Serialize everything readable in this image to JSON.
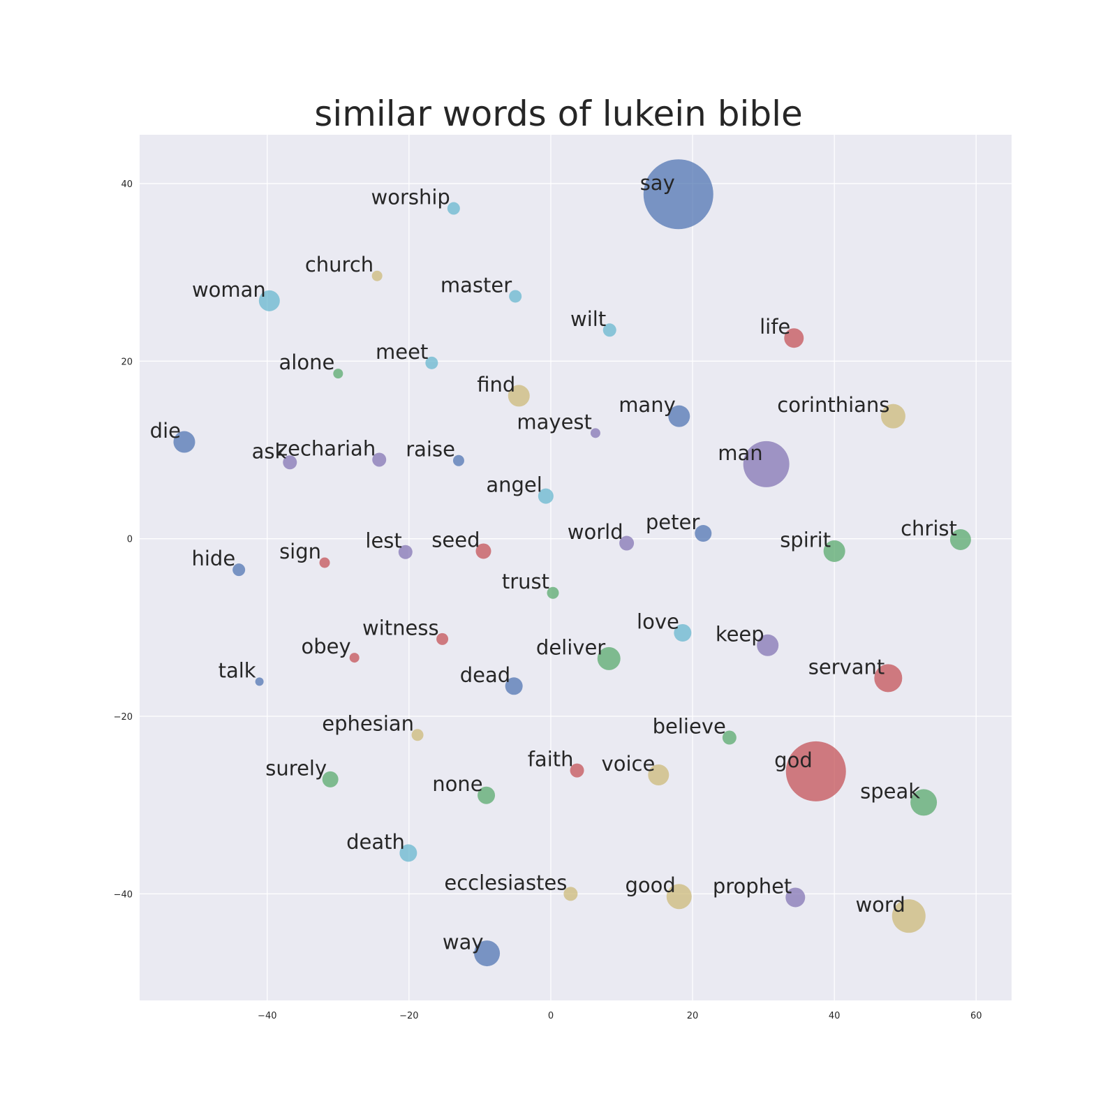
{
  "chart_data": {
    "type": "scatter",
    "title": "similar words of lukein bible",
    "xlabel": "",
    "ylabel": "",
    "xlim": [
      -58,
      65
    ],
    "ylim": [
      -52,
      45.5
    ],
    "xticks": [
      -40,
      -20,
      0,
      20,
      40,
      60
    ],
    "yticks": [
      -40,
      -20,
      0,
      20,
      40
    ],
    "grid": true,
    "palette": {
      "blue": "#4c72b0",
      "green": "#55a868",
      "red": "#c44e52",
      "purple": "#8172b2",
      "yellow": "#ccb974",
      "cyan": "#64b5cd"
    },
    "points": [
      {
        "word": "say",
        "x": 18,
        "y": 38.8,
        "size": 50,
        "color": "blue"
      },
      {
        "word": "worship",
        "x": -13.7,
        "y": 37.2,
        "size": 9,
        "color": "cyan"
      },
      {
        "word": "church",
        "x": -24.5,
        "y": 29.6,
        "size": 7.5,
        "color": "yellow"
      },
      {
        "word": "master",
        "x": -5,
        "y": 27.3,
        "size": 9,
        "color": "cyan"
      },
      {
        "word": "woman",
        "x": -39.7,
        "y": 26.8,
        "size": 15,
        "color": "cyan"
      },
      {
        "word": "wilt",
        "x": 8.3,
        "y": 23.5,
        "size": 9.5,
        "color": "cyan"
      },
      {
        "word": "life",
        "x": 34.3,
        "y": 22.6,
        "size": 14,
        "color": "red"
      },
      {
        "word": "meet",
        "x": -16.8,
        "y": 19.8,
        "size": 9,
        "color": "cyan"
      },
      {
        "word": "alone",
        "x": -30,
        "y": 18.6,
        "size": 7,
        "color": "green"
      },
      {
        "word": "find",
        "x": -4.5,
        "y": 16.1,
        "size": 15.5,
        "color": "yellow"
      },
      {
        "word": "many",
        "x": 18.1,
        "y": 13.8,
        "size": 15.5,
        "color": "blue"
      },
      {
        "word": "corinthians",
        "x": 48.3,
        "y": 13.8,
        "size": 17.5,
        "color": "yellow"
      },
      {
        "word": "mayest",
        "x": 6.3,
        "y": 11.9,
        "size": 7,
        "color": "purple"
      },
      {
        "word": "die",
        "x": -51.7,
        "y": 10.9,
        "size": 15.5,
        "color": "blue"
      },
      {
        "word": "ask",
        "x": -36.8,
        "y": 8.6,
        "size": 10,
        "color": "purple"
      },
      {
        "word": "zechariah",
        "x": -24.2,
        "y": 8.9,
        "size": 10,
        "color": "purple"
      },
      {
        "word": "raise",
        "x": -13,
        "y": 8.8,
        "size": 8,
        "color": "blue"
      },
      {
        "word": "man",
        "x": 30.4,
        "y": 8.4,
        "size": 33,
        "color": "purple"
      },
      {
        "word": "angel",
        "x": -0.7,
        "y": 4.8,
        "size": 11,
        "color": "cyan"
      },
      {
        "word": "peter",
        "x": 21.5,
        "y": 0.6,
        "size": 12,
        "color": "blue"
      },
      {
        "word": "christ",
        "x": 57.8,
        "y": -0.1,
        "size": 15,
        "color": "green"
      },
      {
        "word": "world",
        "x": 10.7,
        "y": -0.5,
        "size": 10.5,
        "color": "purple"
      },
      {
        "word": "seed",
        "x": -9.5,
        "y": -1.4,
        "size": 11,
        "color": "red"
      },
      {
        "word": "lest",
        "x": -20.5,
        "y": -1.5,
        "size": 10,
        "color": "purple"
      },
      {
        "word": "spirit",
        "x": 40,
        "y": -1.4,
        "size": 15.5,
        "color": "green"
      },
      {
        "word": "sign",
        "x": -31.9,
        "y": -2.7,
        "size": 7.5,
        "color": "red"
      },
      {
        "word": "hide",
        "x": -44,
        "y": -3.5,
        "size": 9,
        "color": "blue"
      },
      {
        "word": "trust",
        "x": 0.3,
        "y": -6.1,
        "size": 8.5,
        "color": "green"
      },
      {
        "word": "love",
        "x": 18.6,
        "y": -10.6,
        "size": 12.5,
        "color": "cyan"
      },
      {
        "word": "witness",
        "x": -15.3,
        "y": -11.3,
        "size": 8.5,
        "color": "red"
      },
      {
        "word": "keep",
        "x": 30.6,
        "y": -12,
        "size": 15.5,
        "color": "purple"
      },
      {
        "word": "obey",
        "x": -27.7,
        "y": -13.4,
        "size": 7,
        "color": "red"
      },
      {
        "word": "deliver",
        "x": 8.2,
        "y": -13.5,
        "size": 16.5,
        "color": "green"
      },
      {
        "word": "servant",
        "x": 47.6,
        "y": -15.7,
        "size": 20,
        "color": "red"
      },
      {
        "word": "dead",
        "x": -5.2,
        "y": -16.6,
        "size": 12.5,
        "color": "blue"
      },
      {
        "word": "talk",
        "x": -41.1,
        "y": -16.1,
        "size": 6,
        "color": "blue"
      },
      {
        "word": "ephesian",
        "x": -18.8,
        "y": -22.1,
        "size": 8.5,
        "color": "yellow"
      },
      {
        "word": "believe",
        "x": 25.2,
        "y": -22.4,
        "size": 10,
        "color": "green"
      },
      {
        "word": "god",
        "x": 37.4,
        "y": -26.2,
        "size": 43,
        "color": "red"
      },
      {
        "word": "faith",
        "x": 3.7,
        "y": -26.1,
        "size": 10,
        "color": "red"
      },
      {
        "word": "voice",
        "x": 15.2,
        "y": -26.6,
        "size": 15,
        "color": "yellow"
      },
      {
        "word": "surely",
        "x": -31.1,
        "y": -27.1,
        "size": 11.5,
        "color": "green"
      },
      {
        "word": "none",
        "x": -9.1,
        "y": -28.9,
        "size": 12.5,
        "color": "green"
      },
      {
        "word": "speak",
        "x": 52.6,
        "y": -29.7,
        "size": 19,
        "color": "green"
      },
      {
        "word": "death",
        "x": -20.1,
        "y": -35.4,
        "size": 12.5,
        "color": "cyan"
      },
      {
        "word": "ecclesiastes",
        "x": 2.8,
        "y": -40,
        "size": 10,
        "color": "yellow"
      },
      {
        "word": "good",
        "x": 18.1,
        "y": -40.3,
        "size": 18,
        "color": "yellow"
      },
      {
        "word": "prophet",
        "x": 34.5,
        "y": -40.4,
        "size": 14,
        "color": "purple"
      },
      {
        "word": "word",
        "x": 50.5,
        "y": -42.5,
        "size": 24,
        "color": "yellow"
      },
      {
        "word": "way",
        "x": -9,
        "y": -46.7,
        "size": 18.5,
        "color": "blue"
      }
    ]
  }
}
